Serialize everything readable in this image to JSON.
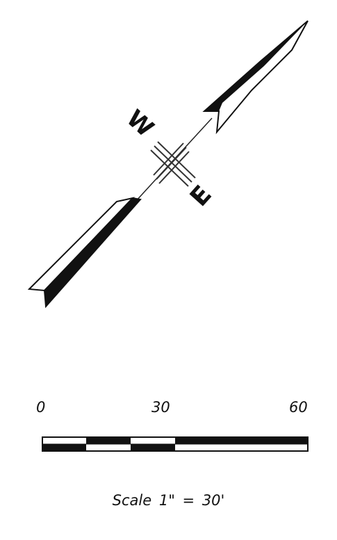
{
  "compass": {
    "west_label": "W",
    "east_label": "E"
  },
  "scale": {
    "ticks": [
      "0",
      "30",
      "60"
    ],
    "caption": "Scale 1\" = 30'"
  }
}
